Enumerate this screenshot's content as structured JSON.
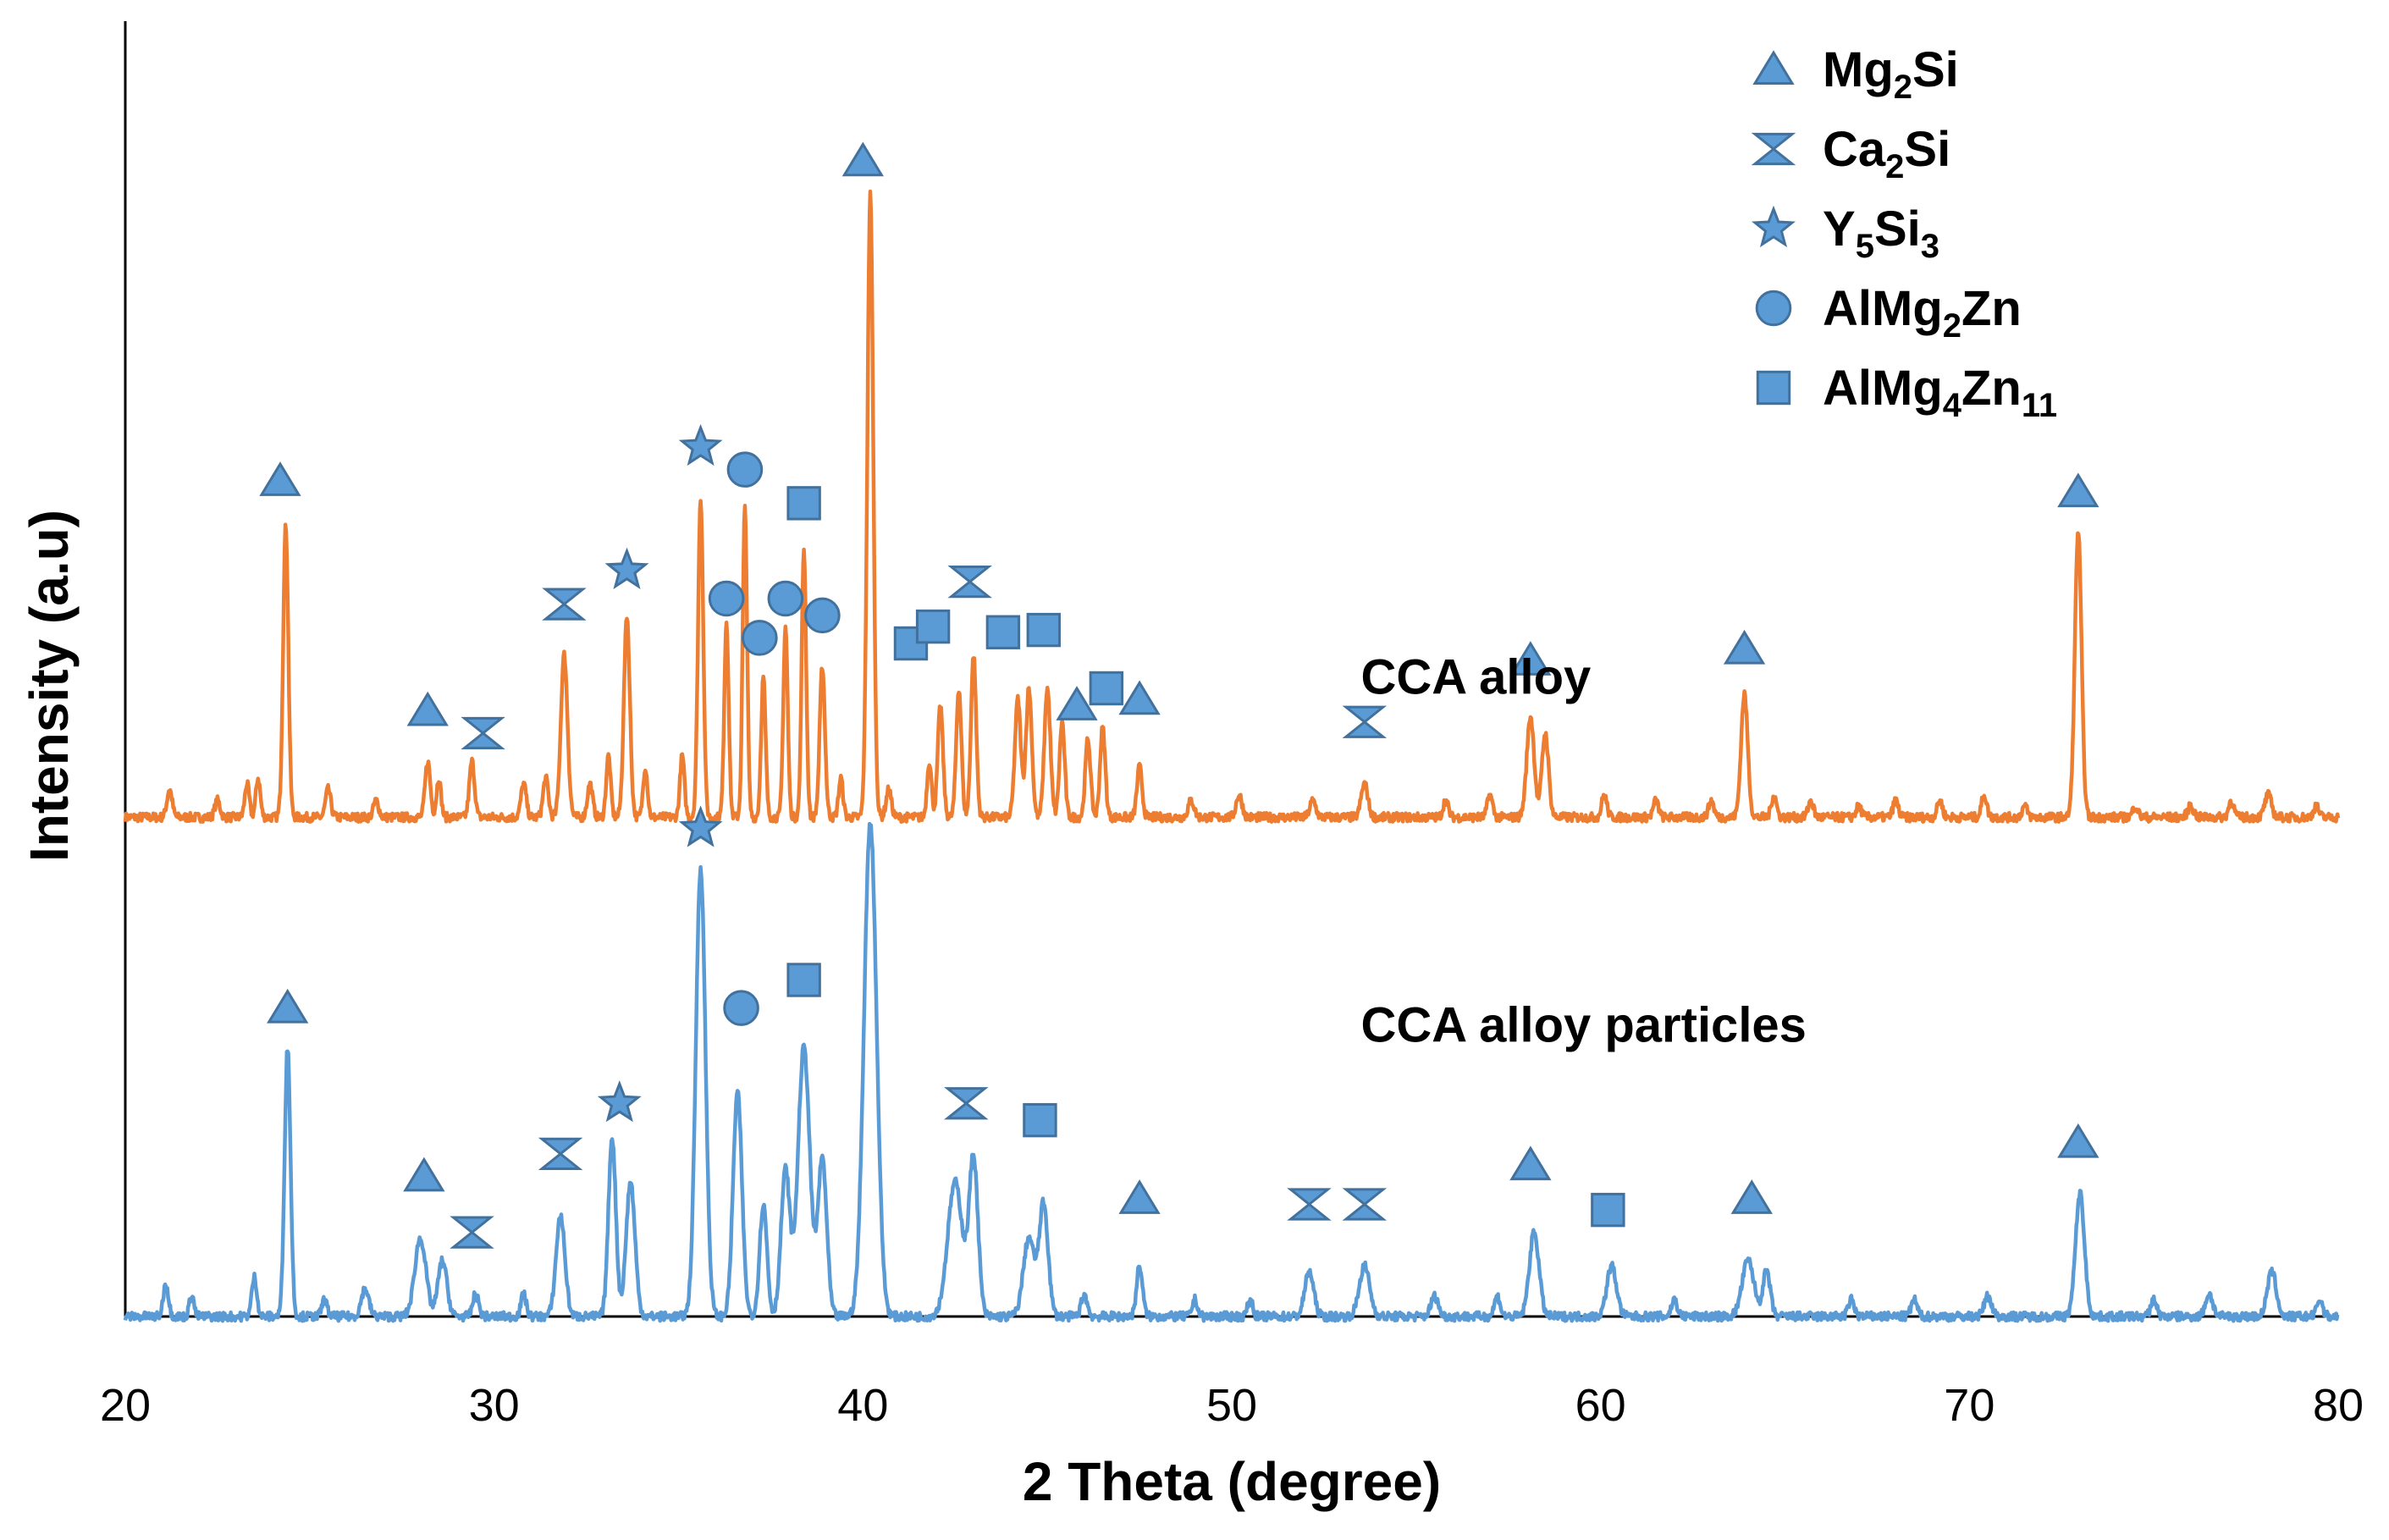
{
  "chart_data": {
    "type": "line",
    "title": "",
    "xlabel": "2 Theta (degree)",
    "ylabel": "Intensity (a.u)",
    "xlim": [
      20,
      80
    ],
    "xticks": [
      20,
      30,
      40,
      50,
      60,
      70,
      80
    ],
    "y_tick_labels": "none",
    "grid": false,
    "legend_position": "top-right",
    "marker_color": "#5b9bd5",
    "legend": [
      {
        "symbol": "triangle",
        "icon": "triangle-icon",
        "base": "Mg",
        "sub1": "2",
        "mid": "Si",
        "sub2": ""
      },
      {
        "symbol": "hourglass",
        "icon": "hourglass-icon",
        "base": "Ca",
        "sub1": "2",
        "mid": "Si",
        "sub2": ""
      },
      {
        "symbol": "star",
        "icon": "star-icon",
        "base": "Y",
        "sub1": "5",
        "mid": "Si",
        "sub2": "3"
      },
      {
        "symbol": "circle",
        "icon": "circle-icon",
        "base": "AlMg",
        "sub1": "2",
        "mid": "Zn",
        "sub2": ""
      },
      {
        "symbol": "square",
        "icon": "square-icon",
        "base": "AlMg",
        "sub1": "4",
        "mid": "Zn",
        "sub2": "11"
      }
    ],
    "series": [
      {
        "name": "CCA alloy",
        "color": "#ed7d31",
        "baseline": 0.445,
        "peaks": [
          [
            21.2,
            0.47,
            0.07
          ],
          [
            22.5,
            0.46,
            0.07
          ],
          [
            23.3,
            0.475,
            0.06
          ],
          [
            23.6,
            0.48,
            0.06
          ],
          [
            24.35,
            0.705,
            0.07
          ],
          [
            25.5,
            0.47,
            0.07
          ],
          [
            26.8,
            0.46,
            0.07
          ],
          [
            28.2,
            0.495,
            0.07
          ],
          [
            28.5,
            0.48,
            0.06
          ],
          [
            29.4,
            0.495,
            0.07
          ],
          [
            30.8,
            0.475,
            0.07
          ],
          [
            31.4,
            0.48,
            0.07
          ],
          [
            31.9,
            0.59,
            0.09
          ],
          [
            32.6,
            0.475,
            0.07
          ],
          [
            33.1,
            0.5,
            0.06
          ],
          [
            33.6,
            0.625,
            0.08
          ],
          [
            34.1,
            0.49,
            0.06
          ],
          [
            35.1,
            0.5,
            0.06
          ],
          [
            35.6,
            0.73,
            0.07
          ],
          [
            36.3,
            0.62,
            0.06
          ],
          [
            36.8,
            0.72,
            0.06
          ],
          [
            37.3,
            0.57,
            0.06
          ],
          [
            37.9,
            0.615,
            0.06
          ],
          [
            38.4,
            0.685,
            0.06
          ],
          [
            38.9,
            0.58,
            0.07
          ],
          [
            39.4,
            0.48,
            0.06
          ],
          [
            40.2,
            1.0,
            0.08
          ],
          [
            40.7,
            0.47,
            0.07
          ],
          [
            41.8,
            0.495,
            0.06
          ],
          [
            42.1,
            0.545,
            0.07
          ],
          [
            42.6,
            0.56,
            0.07
          ],
          [
            43.0,
            0.59,
            0.07
          ],
          [
            44.2,
            0.55,
            0.08
          ],
          [
            44.5,
            0.56,
            0.08
          ],
          [
            45.0,
            0.56,
            0.08
          ],
          [
            45.4,
            0.53,
            0.07
          ],
          [
            46.1,
            0.515,
            0.07
          ],
          [
            46.5,
            0.525,
            0.07
          ],
          [
            47.5,
            0.49,
            0.07
          ],
          [
            48.9,
            0.46,
            0.08
          ],
          [
            50.2,
            0.465,
            0.08
          ],
          [
            52.2,
            0.46,
            0.08
          ],
          [
            53.6,
            0.475,
            0.09
          ],
          [
            55.8,
            0.46,
            0.07
          ],
          [
            57.0,
            0.465,
            0.07
          ],
          [
            58.1,
            0.535,
            0.1
          ],
          [
            58.5,
            0.52,
            0.09
          ],
          [
            60.1,
            0.465,
            0.07
          ],
          [
            61.5,
            0.46,
            0.07
          ],
          [
            63.0,
            0.46,
            0.07
          ],
          [
            63.9,
            0.555,
            0.09
          ],
          [
            64.7,
            0.465,
            0.07
          ],
          [
            65.7,
            0.46,
            0.07
          ],
          [
            67.0,
            0.455,
            0.07
          ],
          [
            68.0,
            0.46,
            0.07
          ],
          [
            69.2,
            0.46,
            0.07
          ],
          [
            70.4,
            0.465,
            0.07
          ],
          [
            71.5,
            0.455,
            0.07
          ],
          [
            72.95,
            0.7,
            0.09
          ],
          [
            74.5,
            0.455,
            0.07
          ],
          [
            76.0,
            0.455,
            0.08
          ],
          [
            77.1,
            0.46,
            0.07
          ],
          [
            78.1,
            0.465,
            0.09
          ],
          [
            79.4,
            0.455,
            0.07
          ]
        ]
      },
      {
        "name": "CCA alloy particles",
        "color": "#5b9bd5",
        "baseline": 0.0,
        "peaks": [
          [
            21.1,
            0.03,
            0.07
          ],
          [
            21.8,
            0.02,
            0.06
          ],
          [
            23.5,
            0.035,
            0.07
          ],
          [
            24.4,
            0.24,
            0.08
          ],
          [
            25.4,
            0.015,
            0.07
          ],
          [
            26.5,
            0.025,
            0.1
          ],
          [
            28.0,
            0.07,
            0.15
          ],
          [
            28.6,
            0.05,
            0.12
          ],
          [
            29.5,
            0.02,
            0.08
          ],
          [
            30.8,
            0.02,
            0.07
          ],
          [
            31.8,
            0.09,
            0.12
          ],
          [
            33.2,
            0.16,
            0.1
          ],
          [
            33.7,
            0.12,
            0.12
          ],
          [
            35.6,
            0.4,
            0.13
          ],
          [
            36.6,
            0.2,
            0.12
          ],
          [
            37.3,
            0.1,
            0.1
          ],
          [
            37.9,
            0.13,
            0.12
          ],
          [
            38.4,
            0.24,
            0.16
          ],
          [
            38.9,
            0.14,
            0.12
          ],
          [
            40.2,
            0.44,
            0.17
          ],
          [
            42.5,
            0.12,
            0.2
          ],
          [
            43.0,
            0.14,
            0.12
          ],
          [
            44.9,
            0.1,
            0.12
          ],
          [
            44.5,
            0.07,
            0.15
          ],
          [
            46.0,
            0.02,
            0.08
          ],
          [
            47.5,
            0.045,
            0.08
          ],
          [
            49.0,
            0.015,
            0.07
          ],
          [
            50.5,
            0.015,
            0.07
          ],
          [
            52.1,
            0.04,
            0.12
          ],
          [
            53.6,
            0.045,
            0.14
          ],
          [
            55.5,
            0.018,
            0.1
          ],
          [
            57.2,
            0.018,
            0.08
          ],
          [
            58.2,
            0.075,
            0.13
          ],
          [
            60.3,
            0.045,
            0.13
          ],
          [
            62.0,
            0.015,
            0.08
          ],
          [
            64.0,
            0.05,
            0.16
          ],
          [
            64.5,
            0.04,
            0.1
          ],
          [
            66.8,
            0.015,
            0.08
          ],
          [
            68.5,
            0.015,
            0.08
          ],
          [
            70.5,
            0.018,
            0.1
          ],
          [
            73.0,
            0.11,
            0.12
          ],
          [
            75.0,
            0.015,
            0.08
          ],
          [
            76.5,
            0.02,
            0.1
          ],
          [
            78.2,
            0.04,
            0.12
          ],
          [
            79.5,
            0.015,
            0.08
          ]
        ]
      }
    ],
    "series_labels": [
      {
        "text": "CCA alloy",
        "x": 53.5,
        "y": 0.555
      },
      {
        "text": "CCA alloy particles",
        "x": 53.5,
        "y": 0.245
      }
    ],
    "annotations": [
      {
        "symbol": "triangle",
        "x": 24.2,
        "y": 0.745
      },
      {
        "symbol": "triangle",
        "x": 28.2,
        "y": 0.54
      },
      {
        "symbol": "hourglass",
        "x": 29.7,
        "y": 0.52
      },
      {
        "symbol": "hourglass",
        "x": 31.9,
        "y": 0.635
      },
      {
        "symbol": "star",
        "x": 33.6,
        "y": 0.665
      },
      {
        "symbol": "star",
        "x": 35.6,
        "y": 0.775
      },
      {
        "symbol": "circle",
        "x": 36.8,
        "y": 0.755
      },
      {
        "symbol": "circle",
        "x": 36.3,
        "y": 0.64
      },
      {
        "symbol": "circle",
        "x": 37.2,
        "y": 0.605
      },
      {
        "symbol": "circle",
        "x": 37.9,
        "y": 0.64
      },
      {
        "symbol": "circle",
        "x": 38.9,
        "y": 0.625
      },
      {
        "symbol": "square",
        "x": 38.4,
        "y": 0.725
      },
      {
        "symbol": "triangle",
        "x": 40.0,
        "y": 1.03
      },
      {
        "symbol": "square",
        "x": 41.3,
        "y": 0.6
      },
      {
        "symbol": "square",
        "x": 41.9,
        "y": 0.615
      },
      {
        "symbol": "hourglass",
        "x": 42.9,
        "y": 0.655
      },
      {
        "symbol": "square",
        "x": 43.8,
        "y": 0.61
      },
      {
        "symbol": "square",
        "x": 44.9,
        "y": 0.612
      },
      {
        "symbol": "triangle",
        "x": 45.8,
        "y": 0.545
      },
      {
        "symbol": "square",
        "x": 46.6,
        "y": 0.56
      },
      {
        "symbol": "triangle",
        "x": 47.5,
        "y": 0.55
      },
      {
        "symbol": "hourglass",
        "x": 53.6,
        "y": 0.53
      },
      {
        "symbol": "triangle",
        "x": 58.1,
        "y": 0.585
      },
      {
        "symbol": "triangle",
        "x": 63.9,
        "y": 0.595
      },
      {
        "symbol": "triangle",
        "x": 72.95,
        "y": 0.735
      },
      {
        "symbol": "star",
        "x": 35.6,
        "y": 0.435
      },
      {
        "symbol": "triangle",
        "x": 24.4,
        "y": 0.275
      },
      {
        "symbol": "triangle",
        "x": 28.1,
        "y": 0.125
      },
      {
        "symbol": "hourglass",
        "x": 29.4,
        "y": 0.075
      },
      {
        "symbol": "hourglass",
        "x": 31.8,
        "y": 0.145
      },
      {
        "symbol": "star",
        "x": 33.4,
        "y": 0.19
      },
      {
        "symbol": "circle",
        "x": 36.7,
        "y": 0.275
      },
      {
        "symbol": "square",
        "x": 38.4,
        "y": 0.3
      },
      {
        "symbol": "hourglass",
        "x": 42.8,
        "y": 0.19
      },
      {
        "symbol": "square",
        "x": 44.8,
        "y": 0.175
      },
      {
        "symbol": "triangle",
        "x": 47.5,
        "y": 0.105
      },
      {
        "symbol": "hourglass",
        "x": 52.1,
        "y": 0.1
      },
      {
        "symbol": "hourglass",
        "x": 53.6,
        "y": 0.1
      },
      {
        "symbol": "triangle",
        "x": 58.1,
        "y": 0.135
      },
      {
        "symbol": "square",
        "x": 60.2,
        "y": 0.095
      },
      {
        "symbol": "triangle",
        "x": 64.1,
        "y": 0.105
      },
      {
        "symbol": "triangle",
        "x": 72.95,
        "y": 0.155
      }
    ]
  }
}
